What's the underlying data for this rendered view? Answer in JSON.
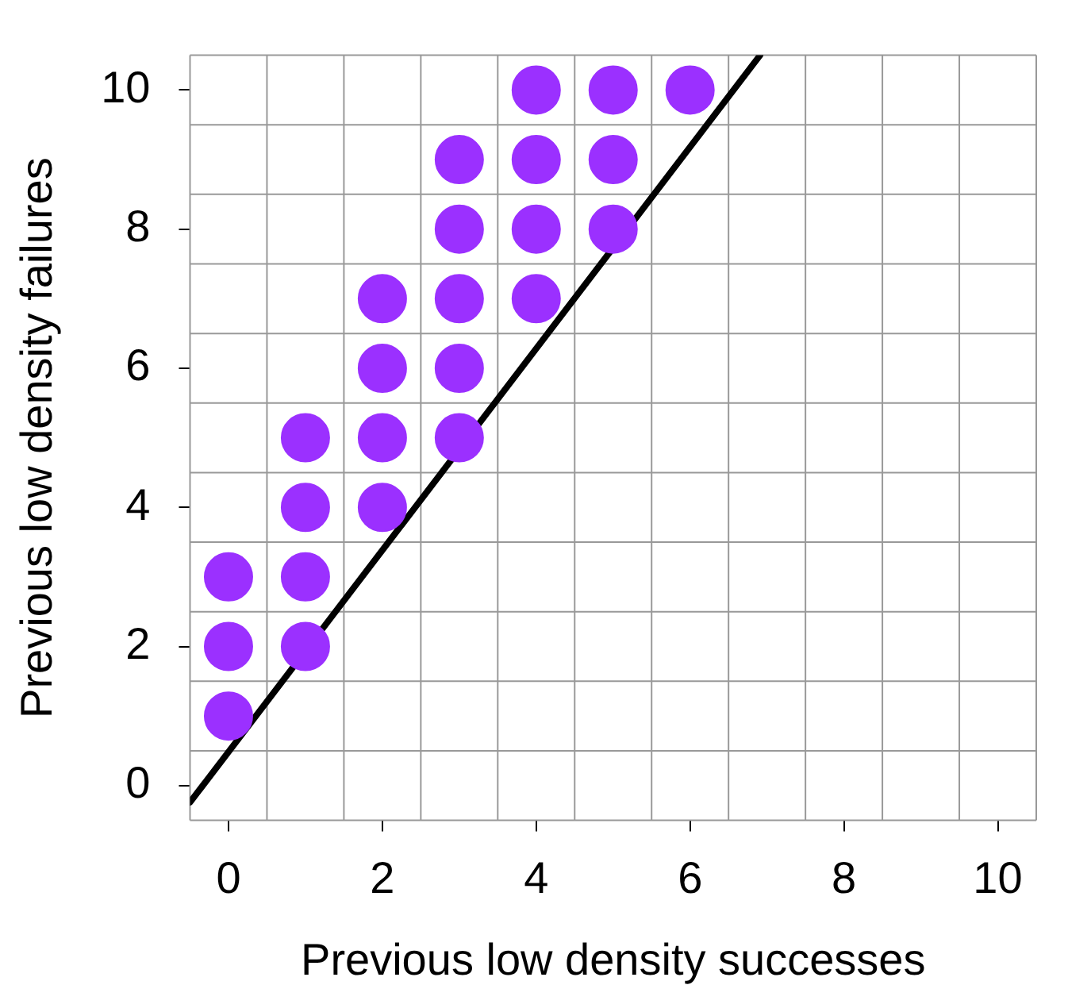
{
  "chart_data": {
    "type": "scatter",
    "xlabel": "Previous low density successes",
    "ylabel": "Previous low density failures",
    "xlim": [
      -0.5,
      10.5
    ],
    "ylim": [
      -0.5,
      10.5
    ],
    "xticks": [
      {
        "value": -0.5,
        "label": null
      },
      0,
      {
        "value": 0.5,
        "label": null
      },
      {
        "value": 1.5,
        "label": null
      },
      2,
      {
        "value": 2.5,
        "label": null
      },
      {
        "value": 3.5,
        "label": null
      },
      4,
      {
        "value": 4.5,
        "label": null
      },
      {
        "value": 5.5,
        "label": null
      },
      6,
      {
        "value": 6.5,
        "label": null
      },
      {
        "value": 7.5,
        "label": null
      },
      8,
      {
        "value": 8.5,
        "label": null
      },
      {
        "value": 9.5,
        "label": null
      },
      10,
      {
        "value": 10.5,
        "label": null
      }
    ],
    "yticks": [
      {
        "value": -0.5,
        "label": null
      },
      0,
      {
        "value": 0.5,
        "label": null
      },
      {
        "value": 1.5,
        "label": null
      },
      2,
      {
        "value": 2.5,
        "label": null
      },
      {
        "value": 3.5,
        "label": null
      },
      4,
      {
        "value": 4.5,
        "label": null
      },
      {
        "value": 5.5,
        "label": null
      },
      6,
      {
        "value": 6.5,
        "label": null
      },
      {
        "value": 7.5,
        "label": null
      },
      8,
      {
        "value": 8.5,
        "label": null
      },
      {
        "value": 9.5,
        "label": null
      },
      10,
      {
        "value": 10.5,
        "label": null
      }
    ],
    "grid": true,
    "legend": false,
    "marker": "circle",
    "series": [
      {
        "color": "#9b30ff",
        "x": [
          0,
          0,
          0,
          1,
          1,
          1,
          1,
          2,
          2,
          2,
          2,
          3,
          3,
          3,
          3,
          3,
          4,
          4,
          4,
          4,
          5,
          5,
          5,
          6
        ],
        "values": [
          1,
          2,
          3,
          2,
          3,
          4,
          5,
          4,
          5,
          6,
          7,
          5,
          6,
          7,
          8,
          9,
          7,
          8,
          9,
          10,
          8,
          9,
          10,
          10
        ]
      },
      {
        "type": "line",
        "color": "#000000",
        "marker": "none",
        "line_style": "solid",
        "x": [
          -0.5,
          6.91
        ],
        "values": [
          -0.24,
          10.5
        ]
      }
    ]
  }
}
